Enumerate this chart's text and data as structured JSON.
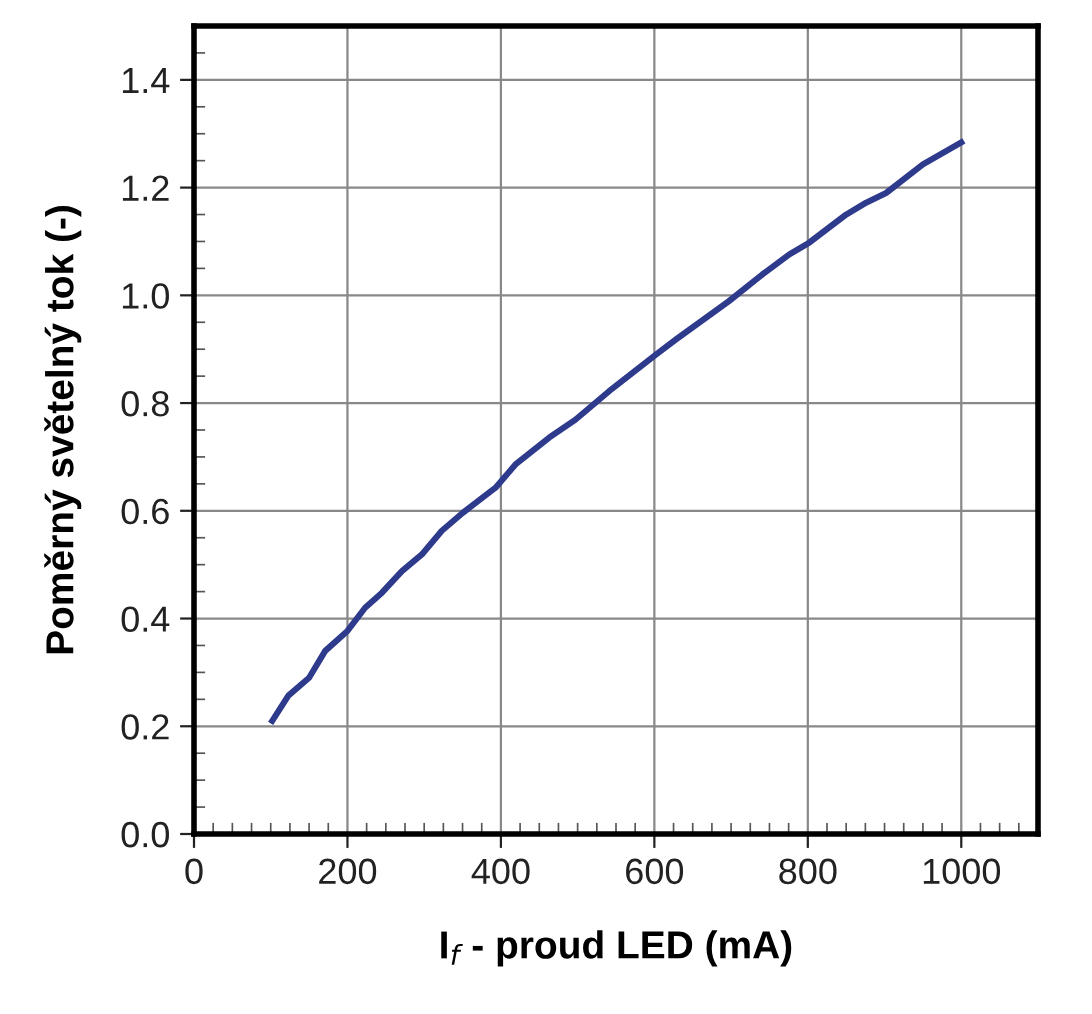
{
  "chart_data": {
    "type": "line",
    "xlabel": "I$_{f}$ - proud LED (mA)",
    "ylabel": "Poměrný světelný tok (-)",
    "xlim": [
      0,
      1100
    ],
    "xticks": [
      0,
      200,
      400,
      600,
      800,
      1000
    ],
    "ylim": [
      0,
      1.5
    ],
    "yticks": [
      {
        "value": 0,
        "label": "0.0"
      },
      0.2,
      0.4,
      0.6,
      0.8,
      {
        "value": 1,
        "label": "1.0"
      },
      1.2,
      1.4
    ],
    "grid": true,
    "marker": "none",
    "line_style": "solid",
    "series": [
      {
        "color": "#2e3a8c",
        "x": [
          102,
          123,
          150,
          171,
          200,
          223,
          245,
          271,
          297,
          323,
          350,
          393,
          419,
          463,
          497,
          541,
          602,
          628,
          697,
          741,
          776,
          802,
          850,
          876,
          902,
          950,
          1000
        ],
        "values": [
          0.21,
          0.257,
          0.29,
          0.34,
          0.377,
          0.42,
          0.448,
          0.488,
          0.519,
          0.563,
          0.596,
          0.643,
          0.686,
          0.736,
          0.769,
          0.822,
          0.89,
          0.918,
          0.989,
          1.039,
          1.076,
          1.098,
          1.15,
          1.172,
          1.19,
          1.243,
          1.284
        ]
      }
    ]
  }
}
